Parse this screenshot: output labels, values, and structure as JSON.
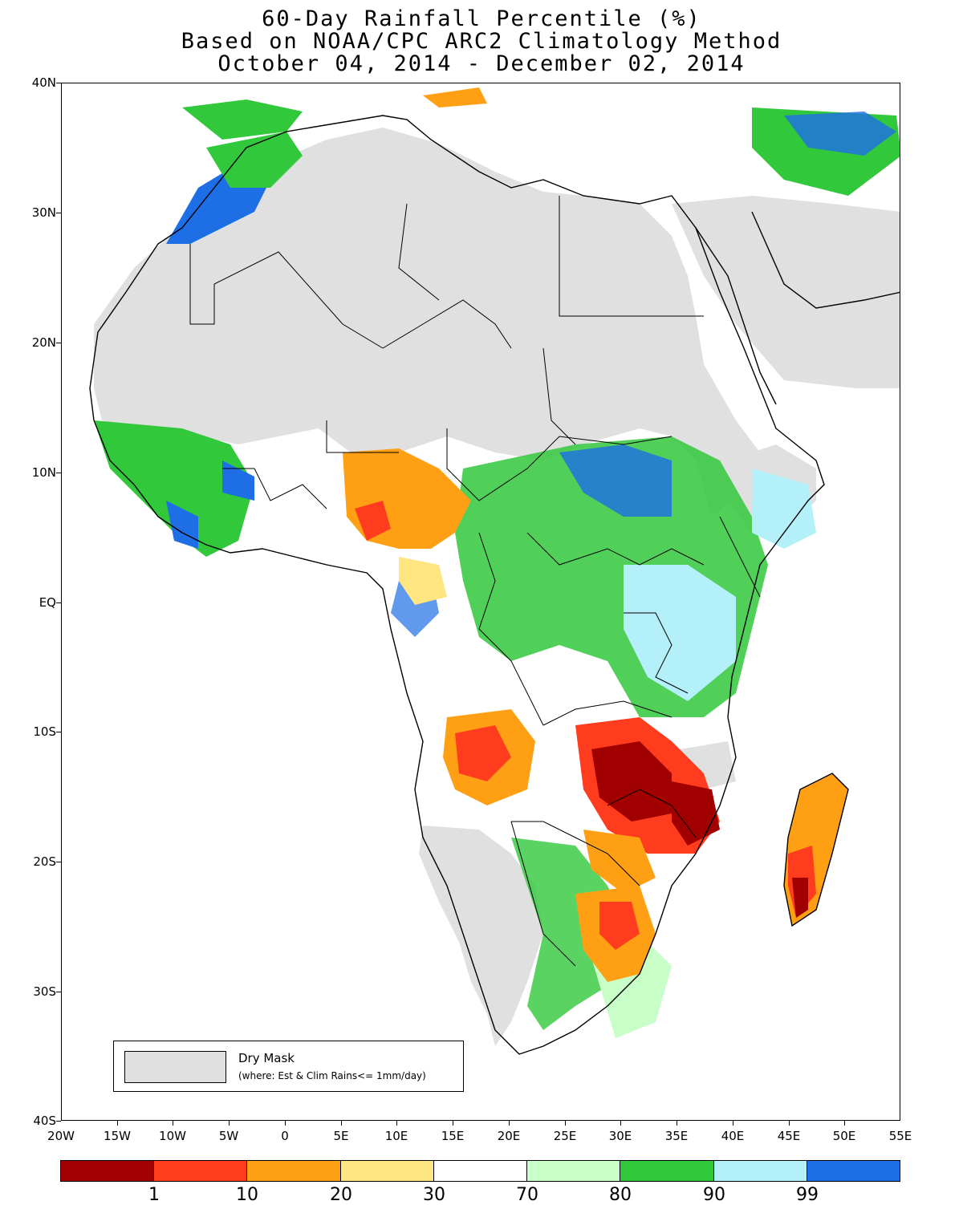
{
  "title": {
    "line1": "60-Day Rainfall Percentile (%)",
    "line2": "Based on NOAA/CPC ARC2 Climatology Method",
    "line3": "October 04, 2014 - December 02, 2014"
  },
  "axes": {
    "y_labels": [
      "40N",
      "30N",
      "20N",
      "10N",
      "EQ",
      "10S",
      "20S",
      "30S",
      "40S"
    ],
    "x_labels": [
      "20W",
      "15W",
      "10W",
      "5W",
      "0",
      "5E",
      "10E",
      "15E",
      "20E",
      "25E",
      "30E",
      "35E",
      "40E",
      "45E",
      "50E",
      "55E"
    ],
    "lat_range": [
      -40,
      40
    ],
    "lon_range": [
      -20,
      55
    ]
  },
  "legend": {
    "title": "Dry Mask",
    "note": "(where: Est & Clim Rains<= 1mm/day)",
    "color": "#e0e0e0"
  },
  "colorbar": {
    "colors": [
      "#a00000",
      "#ff3c1e",
      "#ffa014",
      "#ffe680",
      "#ffffff",
      "#c8ffc8",
      "#32c83c",
      "#b4f0fa",
      "#1e6ee6"
    ],
    "labels": [
      "1",
      "10",
      "20",
      "30",
      "70",
      "80",
      "90",
      "99"
    ]
  },
  "colors": {
    "dry_mask": "#e0e0e0",
    "very_dry": "#a00000",
    "dry": "#ff3c1e",
    "moderately_dry": "#ffa014",
    "slightly_dry": "#ffe680",
    "normal": "#ffffff",
    "slightly_wet": "#c8ffc8",
    "wet": "#32c83c",
    "very_wet": "#b4f0fa",
    "extremely_wet": "#1e6ee6"
  }
}
